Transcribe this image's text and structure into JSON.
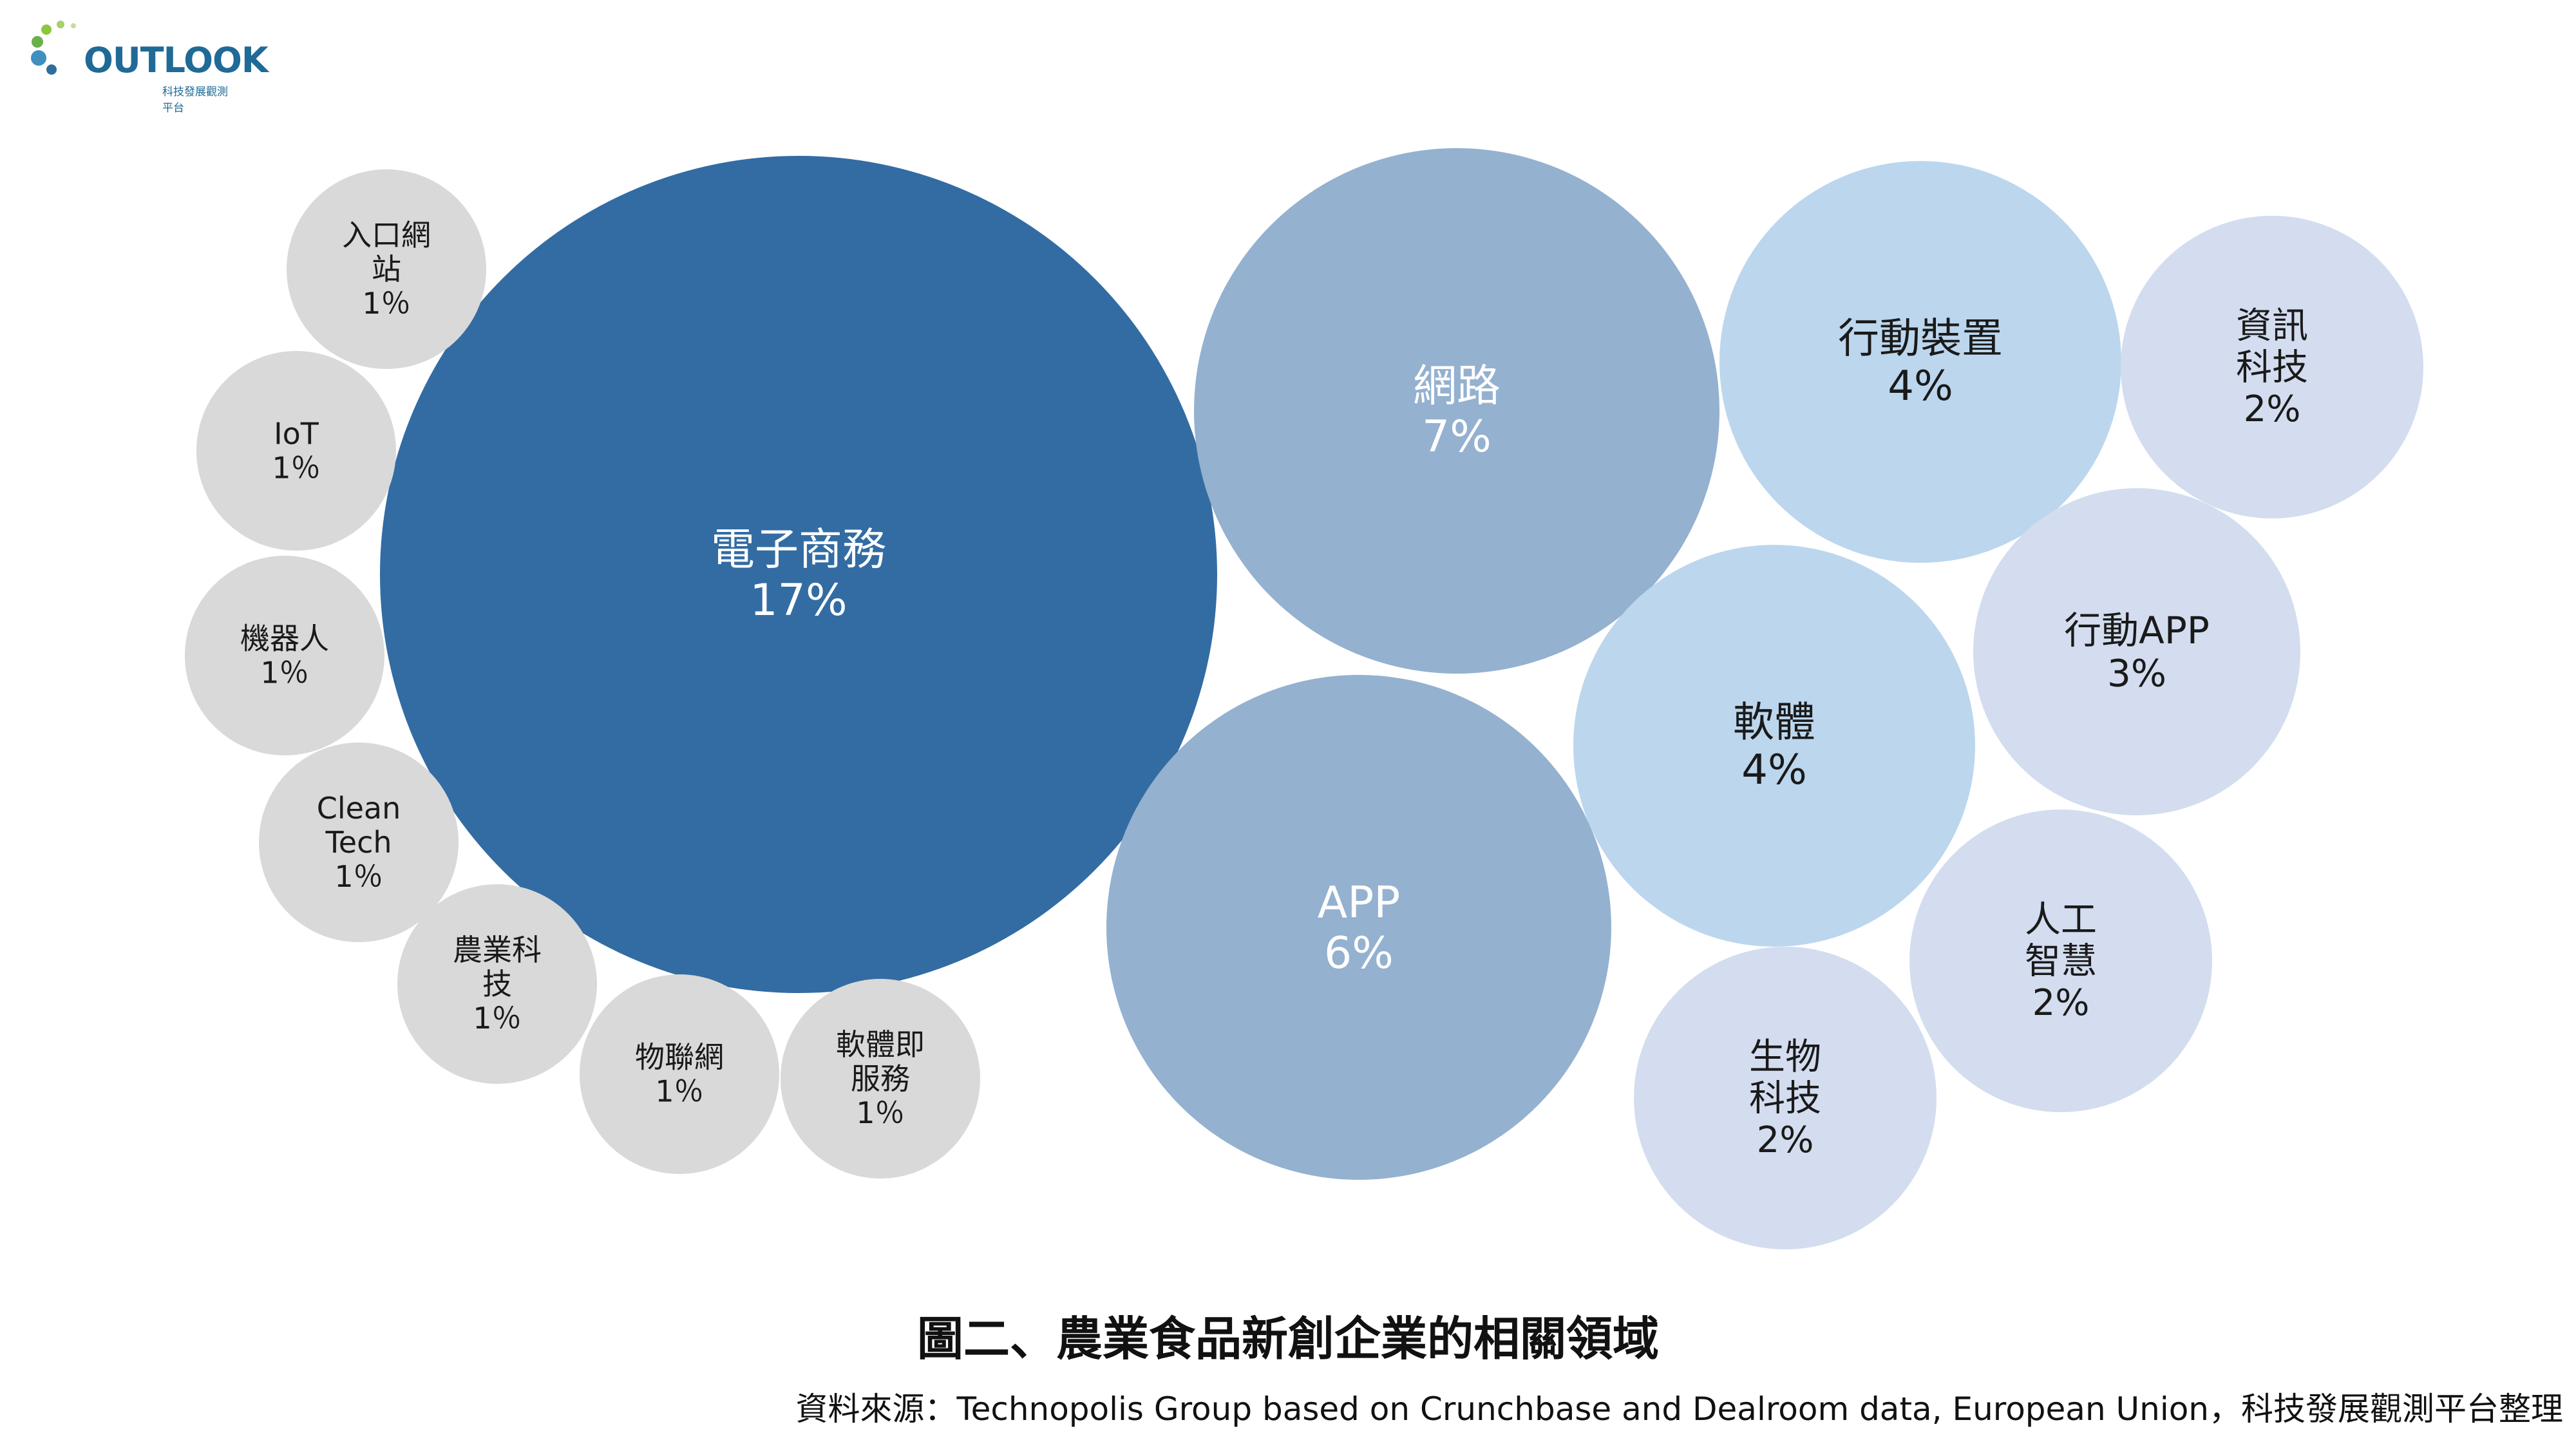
{
  "logo": {
    "name": "OUTLOOK",
    "subtitle": "科技發展觀測平台"
  },
  "chart_data": {
    "type": "bubble",
    "title": "圖二、農業食品新創企業的相關領域",
    "source": "資料來源：Technopolis Group based on Crunchbase and Dealroom data, European Union，科技發展觀測平台整理",
    "bubbles": [
      {
        "lines": [
          "電子商務",
          "17%"
        ],
        "value": 17,
        "color": "#326ca3",
        "text_color": "#ffffff"
      },
      {
        "lines": [
          "網路",
          "7%"
        ],
        "value": 7,
        "color": "#94b1cf",
        "text_color": "#ffffff"
      },
      {
        "lines": [
          "APP",
          "6%"
        ],
        "value": 6,
        "color": "#94b1cf",
        "text_color": "#ffffff"
      },
      {
        "lines": [
          "行動裝置",
          "4%"
        ],
        "value": 4,
        "color": "#bcd6ee",
        "text_color": "#1a1a1a"
      },
      {
        "lines": [
          "軟體",
          "4%"
        ],
        "value": 4,
        "color": "#bcd6ee",
        "text_color": "#1a1a1a"
      },
      {
        "lines": [
          "行動APP",
          "3%"
        ],
        "value": 3,
        "color": "#d3ddef",
        "text_color": "#1a1a1a"
      },
      {
        "lines": [
          "資訊",
          "科技",
          "2%"
        ],
        "value": 2,
        "color": "#d3ddef",
        "text_color": "#1a1a1a"
      },
      {
        "lines": [
          "人工",
          "智慧",
          "2%"
        ],
        "value": 2,
        "color": "#d3ddef",
        "text_color": "#1a1a1a"
      },
      {
        "lines": [
          "生物",
          "科技",
          "2%"
        ],
        "value": 2,
        "color": "#d3ddef",
        "text_color": "#1a1a1a"
      },
      {
        "lines": [
          "入口網",
          "站",
          "1％"
        ],
        "value": 1,
        "color": "#d9d9d9",
        "text_color": "#1a1a1a"
      },
      {
        "lines": [
          "IoT",
          "1％"
        ],
        "value": 1,
        "color": "#d9d9d9",
        "text_color": "#1a1a1a"
      },
      {
        "lines": [
          "機器人",
          "1％"
        ],
        "value": 1,
        "color": "#d9d9d9",
        "text_color": "#1a1a1a"
      },
      {
        "lines": [
          "Clean",
          "Tech",
          "1％"
        ],
        "value": 1,
        "color": "#d9d9d9",
        "text_color": "#1a1a1a"
      },
      {
        "lines": [
          "農業科",
          "技",
          "1％"
        ],
        "value": 1,
        "color": "#d9d9d9",
        "text_color": "#1a1a1a"
      },
      {
        "lines": [
          "物聯網",
          "1％"
        ],
        "value": 1,
        "color": "#d9d9d9",
        "text_color": "#1a1a1a"
      },
      {
        "lines": [
          "軟體即",
          "服務",
          "1％"
        ],
        "value": 1,
        "color": "#d9d9d9",
        "text_color": "#1a1a1a"
      }
    ]
  }
}
